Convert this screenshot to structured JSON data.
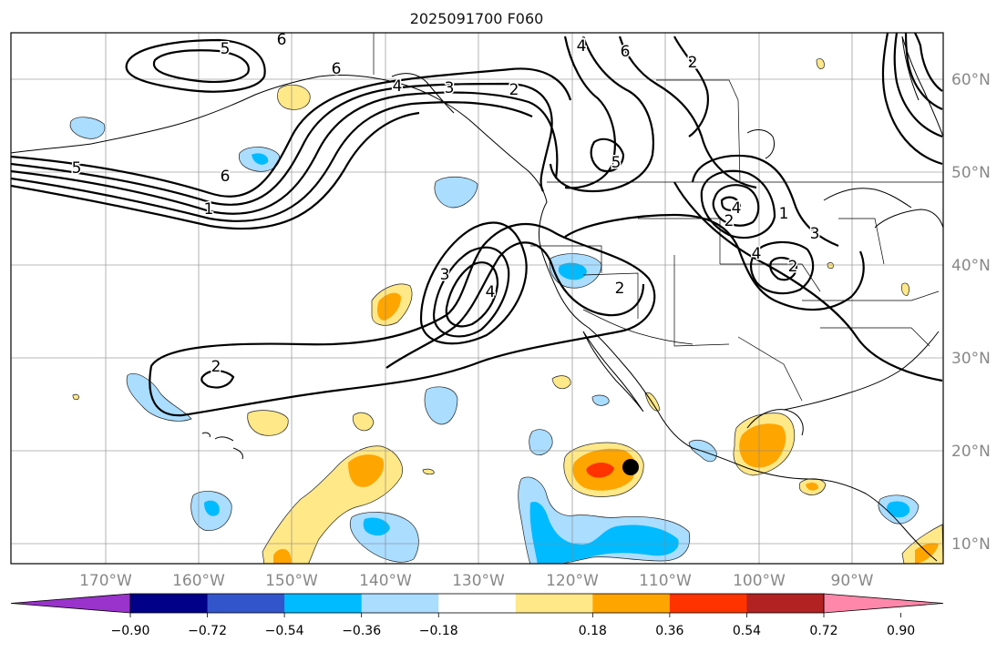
{
  "title": "2025091700 F060",
  "map": {
    "lat_labels": [
      "60°N",
      "50°N",
      "40°N",
      "30°N",
      "20°N",
      "10°N"
    ],
    "lon_labels": [
      "170°W",
      "160°W",
      "150°W",
      "140°W",
      "130°W",
      "120°W",
      "110°W",
      "100°W",
      "90°W"
    ],
    "contour_labels": [
      "5",
      "6",
      "6",
      "4",
      "6",
      "2",
      "3",
      "4",
      "2",
      "5",
      "6",
      "1",
      "2",
      "3",
      "4",
      "5",
      "4",
      "2",
      "1",
      "3",
      "4",
      "2",
      "2"
    ],
    "point_marker": "storm-center",
    "gridlines": true
  },
  "colorbar": {
    "tick_labels": [
      "−0.90",
      "−0.72",
      "−0.54",
      "−0.36",
      "−0.18",
      "0.18",
      "0.36",
      "0.54",
      "0.72",
      "0.90"
    ],
    "colors": [
      "#9933cc",
      "#000088",
      "#3355cc",
      "#00bbff",
      "#aaddff",
      "#ffffff",
      "#ffe888",
      "#ffa500",
      "#ff3300",
      "#b22222",
      "#ff88aa"
    ],
    "extend": "both"
  }
}
